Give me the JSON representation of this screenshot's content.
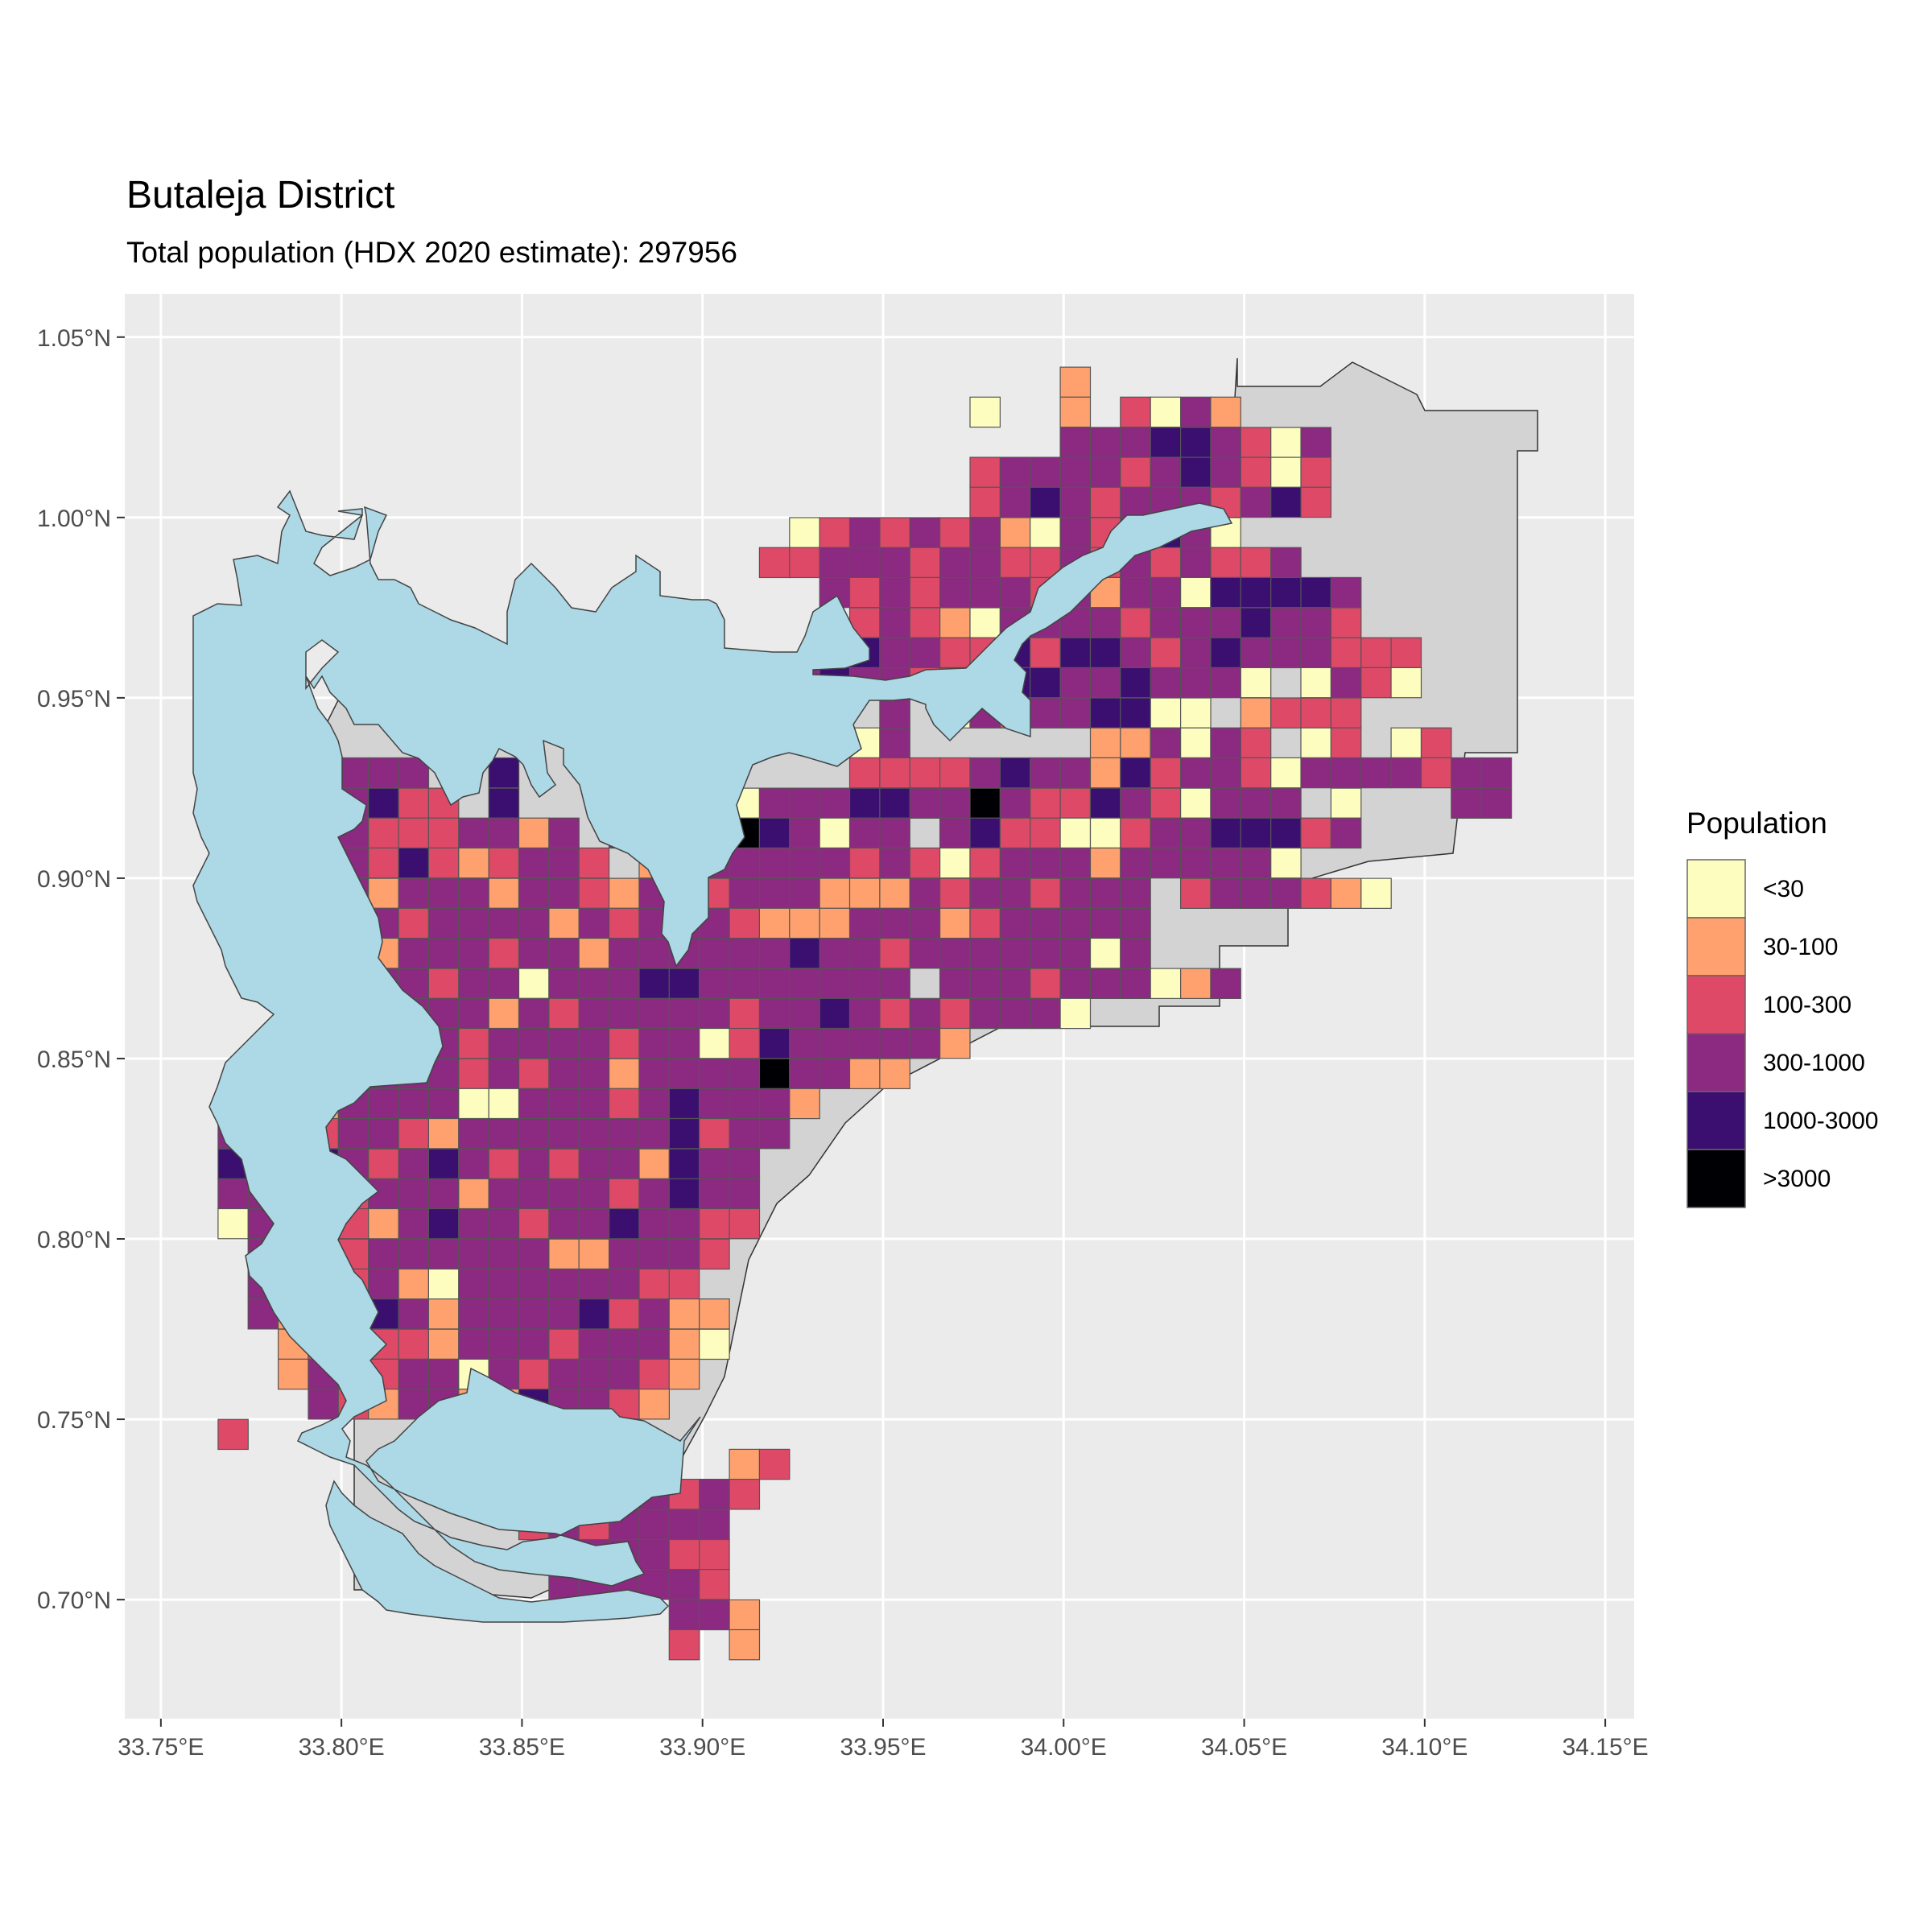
{
  "title": "Butaleja District",
  "subtitle": "Total population (HDX 2020 estimate): 297956",
  "colors": {
    "panel_bg": "#ebebeb",
    "grid": "#ffffff",
    "water": "#add8e6",
    "district_bg": "#d3d3d3",
    "cell_border": "#555555"
  },
  "chart_data": {
    "type": "heatmap",
    "title": "Butaleja District",
    "subtitle": "Total population (HDX 2020 estimate): 297956",
    "x_ticks": [
      "33.75°E",
      "33.80°E",
      "33.85°E",
      "33.90°E",
      "33.95°E",
      "34.00°E",
      "34.05°E",
      "34.10°E",
      "34.15°E"
    ],
    "x_values": [
      33.75,
      33.8,
      33.85,
      33.9,
      33.95,
      34.0,
      34.05,
      34.1,
      34.15
    ],
    "y_ticks": [
      "1.05°N",
      "1.00°N",
      "0.95°N",
      "0.90°N",
      "0.85°N",
      "0.80°N",
      "0.75°N",
      "0.70°N"
    ],
    "y_values": [
      1.05,
      1.0,
      0.95,
      0.9,
      0.85,
      0.8,
      0.75,
      0.7
    ],
    "xlim": [
      33.74,
      34.158
    ],
    "ylim": [
      0.667,
      1.062
    ],
    "grid": true,
    "legend": {
      "title": "Population",
      "position": "right",
      "classes": [
        {
          "label": "<30",
          "color": "#fcfdbf"
        },
        {
          "label": "30-100",
          "color": "#fea16e"
        },
        {
          "label": "100-300",
          "color": "#de4968"
        },
        {
          "label": "300-1000",
          "color": "#8c2981"
        },
        {
          "label": "1000-3000",
          "color": "#3b0f70"
        },
        {
          "label": ">3000",
          "color": "#000004"
        }
      ]
    },
    "grid_cell_degrees": {
      "lon": 0.00833,
      "lat": 0.00833,
      "lon_origin": 33.7575,
      "lat_origin": 0.6875
    },
    "cells_by_row_lat": {
      "1.0375": {
        "c": 29,
        "v": [
          1
        ]
      },
      "1.0292": {
        "c": 26,
        "v": [
          0,
          -1,
          -1,
          1,
          -1,
          2,
          0,
          3,
          1
        ]
      },
      "1.0208": {
        "c": 27,
        "v": [
          -1,
          -1,
          3,
          3,
          3,
          4,
          4,
          3,
          2,
          0,
          3
        ]
      },
      "1.0125": {
        "c": 26,
        "v": [
          2,
          3,
          3,
          3,
          3,
          2,
          3,
          4,
          3,
          2,
          0,
          2
        ]
      },
      "1.0042": {
        "c": 26,
        "v": [
          2,
          3,
          4,
          3,
          2,
          3,
          3,
          3,
          2,
          3,
          4,
          2
        ]
      },
      "0.9958": {
        "c": 20,
        "v": [
          0,
          2,
          3,
          2,
          3,
          2,
          3,
          1,
          0,
          3,
          2,
          3,
          4,
          3,
          0
        ]
      },
      "0.9875": {
        "c": 19,
        "v": [
          2,
          2,
          3,
          3,
          3,
          2,
          3,
          3,
          2,
          2,
          3,
          2,
          3,
          2,
          3,
          2,
          2,
          3
        ]
      },
      "0.9792": {
        "c": 21,
        "v": [
          3,
          2,
          3,
          2,
          3,
          3,
          3,
          2,
          3,
          1,
          3,
          3,
          0,
          4,
          4,
          4,
          4,
          3
        ]
      },
      "0.9708": {
        "c": 22,
        "v": [
          2,
          3,
          2,
          1,
          0,
          3,
          3,
          3,
          3,
          2,
          3,
          3,
          3,
          4,
          3,
          3,
          2
        ]
      },
      "0.9625": {
        "c": 21,
        "v": [
          3,
          4,
          3,
          3,
          2,
          2,
          4,
          2,
          4,
          4,
          3,
          2,
          3,
          4,
          3,
          3,
          3,
          2,
          2,
          2
        ]
      },
      "0.9542": {
        "c": 20,
        "v": [
          3,
          4,
          3,
          3,
          2,
          2,
          3,
          4,
          4,
          3,
          3,
          4,
          3,
          3,
          3,
          0,
          -1,
          0,
          3,
          2,
          0
        ]
      },
      "0.9458": {
        "c": 21,
        "v": [
          -1,
          -1,
          3,
          -1,
          0,
          3,
          2,
          3,
          3,
          4,
          4,
          0,
          0,
          -1,
          1,
          2,
          2,
          2
        ]
      },
      "0.9375": {
        "c": 2,
        "v": [
          4,
          3,
          -1,
          -1,
          -1,
          -1,
          -1,
          -1,
          -1,
          -1,
          -1,
          -1,
          -1,
          -1,
          -1,
          -1,
          -1,
          -1,
          -1,
          -1,
          0,
          3,
          -1,
          -1,
          -1,
          -1,
          -1,
          -1,
          1,
          1,
          3,
          0,
          3,
          2,
          -1,
          0,
          2,
          -1,
          0,
          2
        ]
      },
      "0.9292": {
        "c": 4,
        "v": [
          3,
          3,
          3,
          3,
          -1,
          -1,
          4,
          -1,
          -1,
          -1,
          -1,
          -1,
          -1,
          -1,
          -1,
          -1,
          -1,
          -1,
          2,
          2,
          2,
          2,
          3,
          4,
          3,
          3,
          1,
          4,
          2,
          3,
          3,
          2,
          0,
          3,
          3,
          3,
          3,
          2,
          3,
          3
        ]
      },
      "0.9208": {
        "c": 3,
        "v": [
          -1,
          3,
          3,
          4,
          2,
          2,
          -1,
          4,
          -1,
          -1,
          -1,
          -1,
          -1,
          -1,
          -1,
          0,
          3,
          3,
          3,
          4,
          4,
          3,
          3,
          5,
          3,
          2,
          2,
          4,
          3,
          2,
          0,
          3,
          3,
          3,
          -1,
          0,
          -1,
          -1,
          -1,
          3,
          3
        ]
      },
      "0.9125": {
        "c": 3,
        "v": [
          -1,
          -1,
          3,
          2,
          2,
          2,
          3,
          3,
          1,
          3,
          -1,
          3,
          3,
          3,
          3,
          5,
          4,
          3,
          0,
          3,
          3,
          -1,
          3,
          4,
          2,
          2,
          0,
          0,
          2,
          3,
          3,
          4,
          4,
          4,
          2,
          3
        ]
      },
      "0.9042": {
        "c": 3,
        "v": [
          3,
          3,
          3,
          2,
          4,
          2,
          1,
          2,
          3,
          3,
          2,
          -1,
          1,
          3,
          3,
          3,
          3,
          3,
          3,
          2,
          3,
          2,
          0,
          2,
          3,
          3,
          3,
          1,
          3,
          3,
          3,
          3,
          3,
          0
        ]
      },
      "0.8958": {
        "c": 3,
        "v": [
          3,
          3,
          3,
          1,
          3,
          3,
          3,
          1,
          3,
          3,
          2,
          1,
          3,
          3,
          2,
          3,
          3,
          3,
          1,
          1,
          1,
          3,
          2,
          3,
          3,
          2,
          3,
          3,
          3,
          -1,
          2,
          3,
          3,
          3,
          2,
          1,
          0
        ]
      },
      "0.8875": {
        "c": 2,
        "v": [
          -1,
          3,
          2,
          1,
          3,
          2,
          3,
          3,
          3,
          3,
          1,
          3,
          2,
          3,
          3,
          3,
          2,
          1,
          1,
          1,
          3,
          3,
          3,
          1,
          2,
          3,
          3,
          3,
          3,
          3
        ]
      },
      "0.8792": {
        "c": 2,
        "v": [
          3,
          3,
          2,
          2,
          1,
          3,
          3,
          3,
          2,
          3,
          3,
          1,
          3,
          3,
          3,
          3,
          3,
          3,
          4,
          3,
          3,
          2,
          3,
          3,
          3,
          3,
          3,
          3,
          0,
          3
        ]
      },
      "0.8708": {
        "c": 4,
        "v": [
          3,
          2,
          3,
          3,
          2,
          3,
          3,
          0,
          3,
          3,
          3,
          4,
          4,
          3,
          3,
          3,
          3,
          3,
          3,
          3,
          -1,
          3,
          3,
          3,
          2,
          3,
          3,
          3,
          0,
          1,
          3
        ]
      },
      "0.8625": {
        "c": 4,
        "v": [
          3,
          3,
          2,
          3,
          3,
          3,
          1,
          3,
          2,
          3,
          3,
          3,
          3,
          3,
          2,
          3,
          3,
          4,
          3,
          2,
          3,
          2,
          3,
          3,
          3,
          0
        ]
      },
      "0.8542": {
        "c": 4,
        "v": [
          2,
          2,
          3,
          3,
          3,
          2,
          3,
          3,
          3,
          3,
          2,
          3,
          3,
          0,
          2,
          4,
          3,
          3,
          3,
          3,
          3,
          1
        ]
      },
      "0.8458": {
        "c": 4,
        "v": [
          3,
          3,
          3,
          3,
          3,
          2,
          3,
          2,
          3,
          3,
          1,
          3,
          3,
          3,
          3,
          5,
          3,
          3,
          1,
          1
        ]
      },
      "0.8375": {
        "c": 1,
        "v": [
          0,
          -1,
          0,
          1,
          3,
          3,
          3,
          3,
          0,
          0,
          3,
          3,
          3,
          2,
          3,
          4,
          3,
          3,
          3,
          1
        ]
      },
      "0.8292": {
        "c": 1,
        "v": [
          3,
          3,
          3,
          2,
          3,
          3,
          2,
          1,
          3,
          3,
          3,
          3,
          3,
          3,
          3,
          4,
          2,
          3,
          3
        ]
      },
      "0.8208": {
        "c": 1,
        "v": [
          4,
          3,
          3,
          4,
          3,
          2,
          3,
          4,
          3,
          2,
          3,
          2,
          3,
          3,
          1,
          4,
          3,
          3
        ]
      },
      "0.8125": {
        "c": 1,
        "v": [
          3,
          3,
          2,
          3,
          2,
          3,
          3,
          3,
          1,
          3,
          3,
          3,
          3,
          2,
          3,
          4,
          3,
          3
        ]
      },
      "0.8042": {
        "c": 1,
        "v": [
          0,
          3,
          2,
          3,
          2,
          1,
          3,
          4,
          3,
          3,
          2,
          3,
          3,
          4,
          3,
          3,
          2,
          2
        ]
      },
      "0.7958": {
        "c": 2,
        "v": [
          3,
          3,
          3,
          2,
          3,
          3,
          3,
          3,
          3,
          3,
          1,
          1,
          3,
          3,
          3,
          2
        ]
      },
      "0.7875": {
        "c": 2,
        "v": [
          3,
          2,
          3,
          2,
          3,
          1,
          0,
          3,
          3,
          3,
          3,
          3,
          3,
          2,
          2
        ]
      },
      "0.7792": {
        "c": 2,
        "v": [
          3,
          1,
          2,
          2,
          4,
          3,
          1,
          3,
          3,
          3,
          3,
          4,
          2,
          3,
          1,
          1
        ]
      },
      "0.7708": {
        "c": 3,
        "v": [
          1,
          2,
          3,
          2,
          2,
          1,
          3,
          3,
          3,
          2,
          3,
          3,
          3,
          1,
          0
        ]
      },
      "0.7625": {
        "c": 3,
        "v": [
          1,
          3,
          3,
          2,
          3,
          3,
          0,
          3,
          2,
          3,
          3,
          3,
          2,
          1
        ]
      },
      "0.7542": {
        "c": 4,
        "v": [
          3,
          2,
          1,
          3,
          3,
          1,
          1,
          4,
          3,
          3,
          2,
          1
        ]
      },
      "0.7458": {
        "c": 1,
        "v": [
          2,
          -1,
          -1,
          -1,
          -1,
          -1,
          -1,
          -1,
          -1,
          2,
          3,
          3,
          4,
          2
        ]
      },
      "0.7375": {
        "c": 18,
        "v": [
          1,
          2
        ]
      },
      "0.7292": {
        "c": 11,
        "v": [
          1,
          0,
          0,
          2,
          3,
          2,
          3,
          2
        ]
      },
      "0.7208": {
        "c": 11,
        "v": [
          2,
          3,
          2,
          3,
          3,
          3,
          3
        ]
      },
      "0.7125": {
        "c": 12,
        "v": [
          3,
          3,
          3,
          3,
          2,
          2
        ]
      },
      "0.7042": {
        "c": 12,
        "v": [
          3,
          3,
          3,
          3,
          3,
          2
        ]
      },
      "0.6958": {
        "c": 16,
        "v": [
          3,
          3,
          1
        ]
      },
      "0.6875": {
        "c": 16,
        "v": [
          2,
          -1,
          1
        ]
      }
    }
  }
}
